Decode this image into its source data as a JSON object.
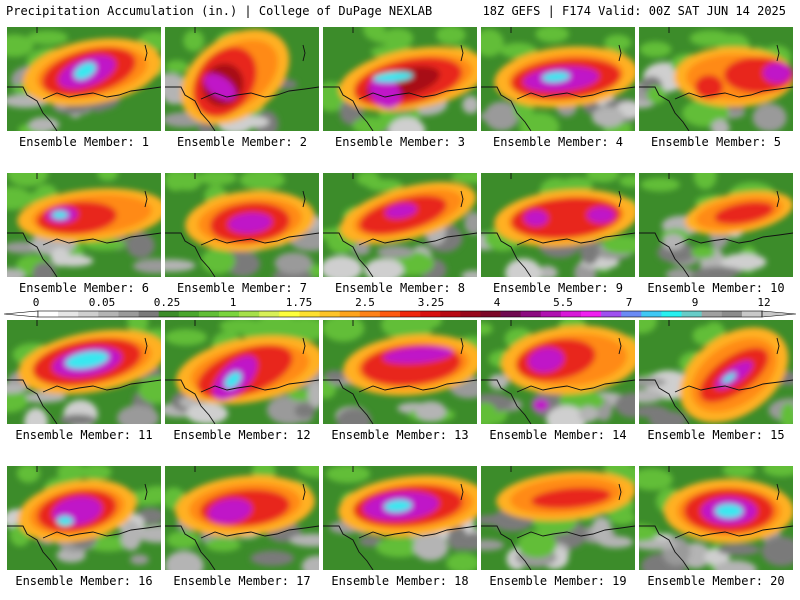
{
  "header": {
    "title_left": "Precipitation Accumulation (in.) | College of DuPage NEXLAB",
    "title_right": "18Z GEFS | F174 Valid: 00Z SAT JUN 14 2025"
  },
  "colorbar": {
    "tick_labels": [
      "0",
      "0.05",
      "0.25",
      "1",
      "1.75",
      "2.5",
      "3.25",
      "4",
      "5.5",
      "7",
      "9",
      "12"
    ],
    "colors": [
      "#ffffff",
      "#e6e6e6",
      "#cfcfcf",
      "#b4b4b4",
      "#9a9a9a",
      "#7a7a7a",
      "#3c8c2a",
      "#4aa62e",
      "#62be37",
      "#7ad43e",
      "#a6e04a",
      "#d8f058",
      "#ffff3c",
      "#ffe030",
      "#ffc428",
      "#ffa41e",
      "#ff8218",
      "#ff5a12",
      "#f0280e",
      "#d81010",
      "#b80a14",
      "#98081c",
      "#7c0828",
      "#700a50",
      "#8c0c80",
      "#b012b0",
      "#d818d8",
      "#f020f0",
      "#a050f0",
      "#6a8af4",
      "#40c8f4",
      "#28f0f0",
      "#68ccc8",
      "#a0a0a0",
      "#8c8c8c",
      "#c8c8c8"
    ]
  },
  "panels": [
    {
      "label": "Ensemble Member: 1"
    },
    {
      "label": "Ensemble Member: 2"
    },
    {
      "label": "Ensemble Member: 3"
    },
    {
      "label": "Ensemble Member: 4"
    },
    {
      "label": "Ensemble Member: 5"
    },
    {
      "label": "Ensemble Member: 6"
    },
    {
      "label": "Ensemble Member: 7"
    },
    {
      "label": "Ensemble Member: 8"
    },
    {
      "label": "Ensemble Member: 9"
    },
    {
      "label": "Ensemble Member: 10"
    },
    {
      "label": "Ensemble Member: 11"
    },
    {
      "label": "Ensemble Member: 12"
    },
    {
      "label": "Ensemble Member: 13"
    },
    {
      "label": "Ensemble Member: 14"
    },
    {
      "label": "Ensemble Member: 15"
    },
    {
      "label": "Ensemble Member: 16"
    },
    {
      "label": "Ensemble Member: 17"
    },
    {
      "label": "Ensemble Member: 18"
    },
    {
      "label": "Ensemble Member: 19"
    },
    {
      "label": "Ensemble Member: 20"
    }
  ]
}
